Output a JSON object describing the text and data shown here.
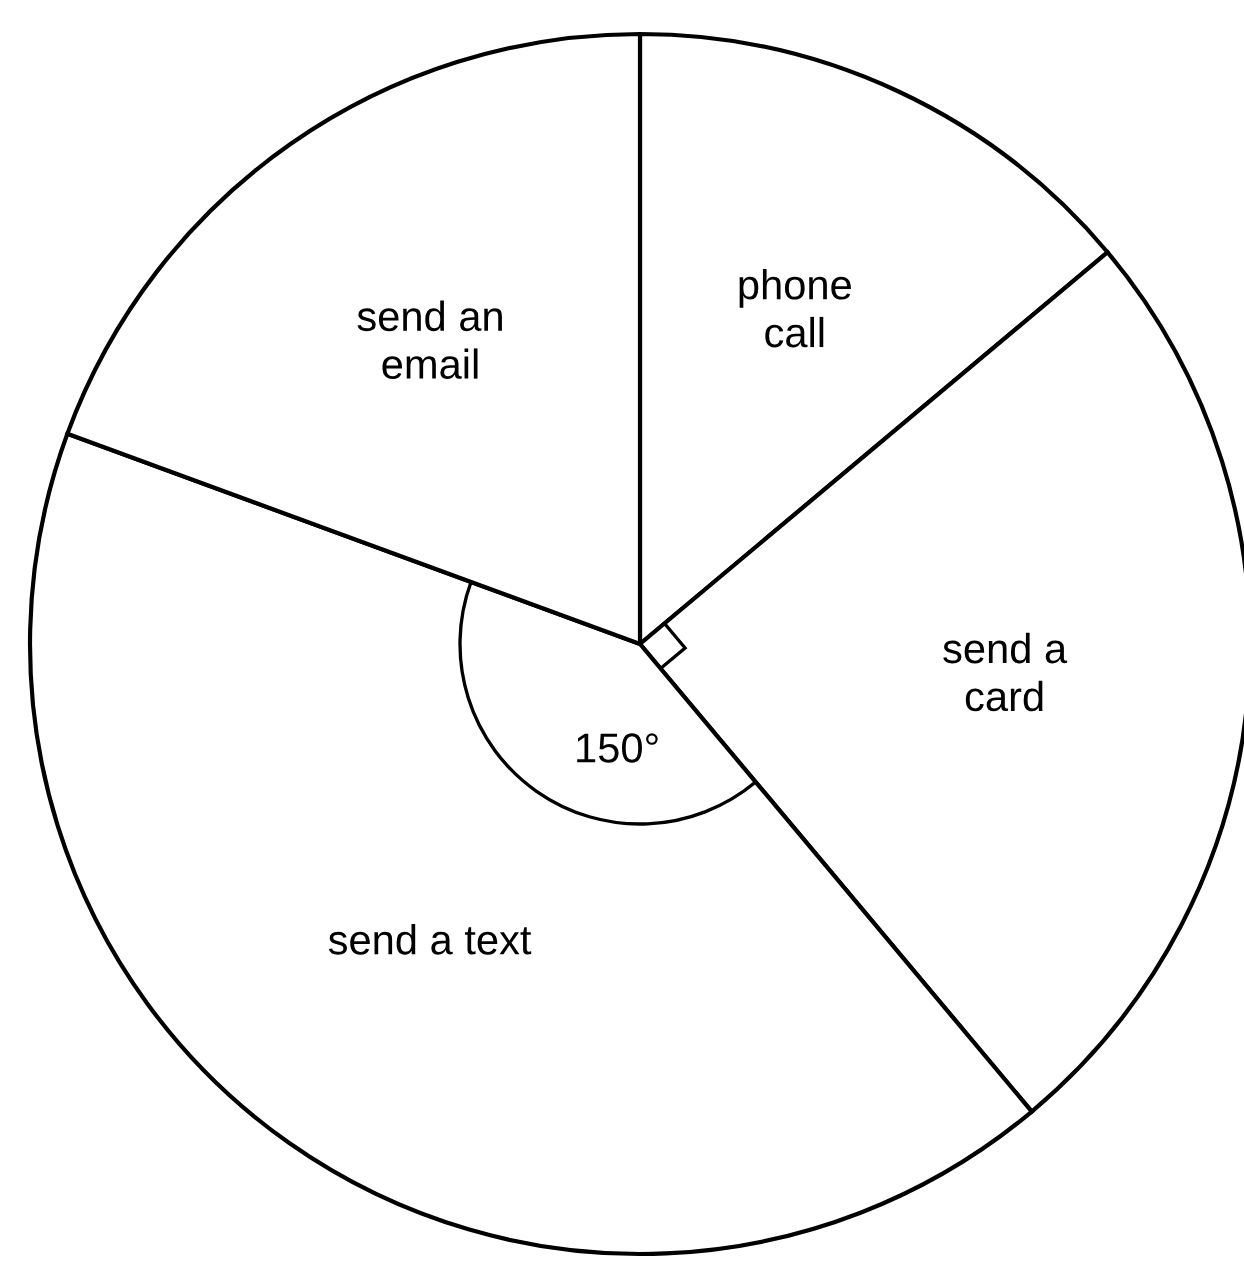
{
  "chart_data": {
    "type": "pie",
    "categories": [
      "phone\ncall",
      "send a\ncard",
      "send a text",
      "send an\nemail"
    ],
    "values": [
      13.9,
      25,
      41.7,
      19.4
    ],
    "colors": [
      "#ffffff",
      "#ffffff",
      "#ffffff",
      "#ffffff"
    ],
    "annotations": [
      "150°"
    ]
  }
}
